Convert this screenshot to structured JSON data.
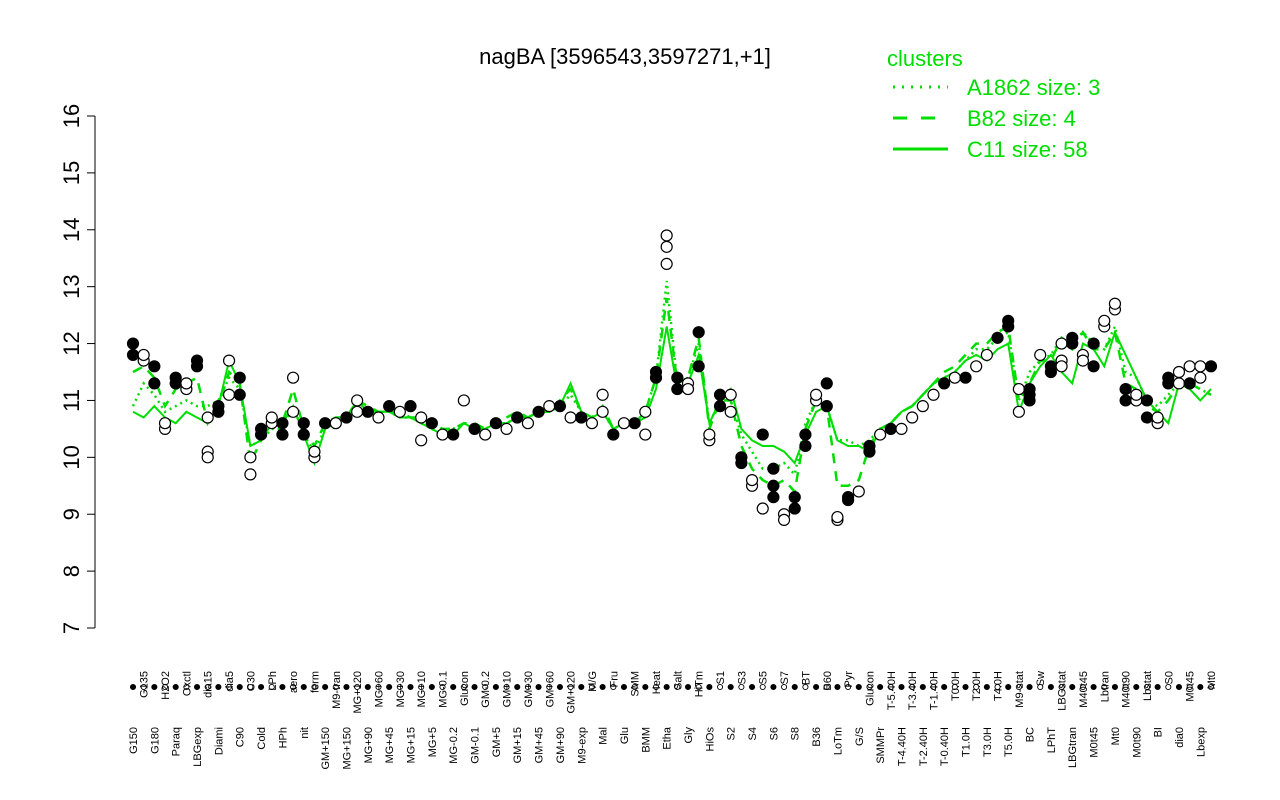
{
  "chart_data": {
    "type": "line",
    "title": "nagBA [3596543,3597271,+1]",
    "xlabel": "",
    "ylabel": "",
    "ylim": [
      7,
      16
    ],
    "yticks": [
      7,
      8,
      9,
      10,
      11,
      12,
      13,
      14,
      15,
      16
    ],
    "xtick_labels": [
      "G150",
      "G135",
      "G180",
      "H2O2",
      "Paraq",
      "Oxctl",
      "LBGexp",
      "dia15",
      "Diami",
      "dia5",
      "C90",
      "C30",
      "Cold",
      "LPh",
      "HPh",
      "aero",
      "nit",
      "ferm",
      "GM+150",
      "M9-tran",
      "MG+150",
      "MG+120",
      "MG+90",
      "MG+60",
      "MG+45",
      "MG+30",
      "MG+15",
      "MG+10",
      "MG+5",
      "MG-0.1",
      "MG-0.2",
      "Glucon",
      "GM-0.1",
      "GM-0.2",
      "GM+5",
      "GM+10",
      "GM+15",
      "GM+30",
      "GM+45",
      "GM+60",
      "GM+90",
      "GM+120",
      "M9-exp",
      "M/G",
      "Mal",
      "Fru",
      "Glu",
      "SMM",
      "BMM",
      "Heat",
      "Etha",
      "Salt",
      "Gly",
      "HiTm",
      "HiOs",
      "S1",
      "S2",
      "S3",
      "S4",
      "S5",
      "S6",
      "S7",
      "S8",
      "BT",
      "B36",
      "B60",
      "LoTm",
      "Pyr",
      "G/S",
      "Glucon",
      "SMMPr",
      "T-5.40H",
      "T-4.40H",
      "T-3.40H",
      "T-2.40H",
      "T-1.40H",
      "T-0.40H",
      "T0.0H",
      "T1.0H",
      "T2.0H",
      "T3.0H",
      "T4.0H",
      "T5.0H",
      "M9-stat",
      "BC",
      "Sw",
      "LPhT",
      "LBGstat",
      "LBGtran",
      "M40t45",
      "M0t45",
      "Lbtran",
      "Mt0",
      "M40t90",
      "M0t90",
      "Lbstat",
      "BI",
      "S0",
      "dia0",
      "M0t45",
      "Lbexp",
      "Mt0"
    ],
    "series": [
      {
        "name": "A1862 size: 3",
        "style": "dotted",
        "color": "#00dd00",
        "values": [
          10.9,
          11.3,
          11.1,
          10.8,
          10.9,
          11.0,
          10.9,
          10.9,
          11.0,
          11.4,
          11.2,
          10.2,
          10.3,
          10.5,
          10.5,
          10.9,
          10.4,
          10.1,
          10.5,
          10.6,
          10.7,
          11.0,
          10.8,
          10.8,
          10.8,
          10.7,
          10.7,
          10.6,
          10.5,
          10.4,
          10.5,
          10.6,
          10.5,
          10.5,
          10.6,
          10.6,
          10.7,
          10.7,
          10.8,
          10.8,
          10.9,
          11.1,
          10.8,
          10.7,
          10.8,
          10.5,
          10.6,
          10.6,
          10.8,
          11.4,
          13.1,
          11.3,
          11.4,
          12.0,
          10.6,
          11.0,
          11.0,
          10.4,
          10.1,
          9.8,
          9.8,
          9.9,
          9.7,
          10.6,
          11.0,
          10.9,
          10.3,
          10.3,
          10.2,
          10.3,
          10.5,
          10.6,
          10.8,
          10.9,
          11.1,
          11.3,
          11.4,
          11.5,
          11.7,
          11.9,
          11.9,
          12.1,
          12.2,
          11.0,
          11.5,
          11.7,
          11.8,
          12.1,
          12.0,
          12.2,
          12.0,
          11.9,
          12.3,
          11.5,
          11.4,
          11.0,
          10.9,
          11.1,
          11.3,
          11.3,
          11.2,
          11.1
        ]
      },
      {
        "name": "B82 size: 4",
        "style": "dashed",
        "color": "#00dd00",
        "values": [
          11.5,
          11.6,
          11.4,
          10.9,
          11.2,
          11.3,
          11.4,
          10.6,
          10.9,
          11.5,
          11.3,
          9.9,
          10.3,
          10.6,
          10.6,
          11.2,
          10.5,
          10.2,
          10.6,
          10.7,
          10.7,
          11.0,
          10.9,
          10.8,
          10.8,
          10.8,
          10.7,
          10.7,
          10.6,
          10.5,
          10.5,
          10.6,
          10.6,
          10.5,
          10.6,
          10.7,
          10.8,
          10.7,
          10.8,
          10.8,
          11.0,
          11.2,
          10.8,
          10.7,
          10.9,
          10.5,
          10.6,
          10.6,
          10.8,
          11.4,
          12.8,
          11.3,
          11.4,
          12.1,
          10.5,
          11.0,
          11.0,
          10.2,
          9.8,
          9.6,
          9.5,
          9.6,
          9.4,
          10.5,
          11.0,
          10.9,
          9.5,
          9.5,
          9.6,
          10.2,
          10.5,
          10.6,
          10.8,
          10.9,
          11.1,
          11.3,
          11.5,
          11.6,
          11.8,
          12.0,
          12.0,
          12.2,
          12.3,
          11.0,
          11.3,
          11.7,
          11.7,
          12.1,
          11.9,
          12.2,
          11.9,
          11.9,
          12.2,
          11.3,
          11.2,
          10.9,
          10.8,
          11.0,
          11.3,
          11.3,
          11.2,
          11.1
        ]
      },
      {
        "name": "C11 size: 58",
        "style": "solid",
        "color": "#00dd00",
        "values": [
          10.8,
          10.7,
          10.9,
          10.7,
          10.6,
          10.8,
          10.7,
          10.6,
          10.9,
          11.7,
          11.3,
          10.2,
          10.3,
          10.6,
          10.6,
          10.9,
          10.4,
          9.9,
          10.5,
          10.6,
          10.7,
          11.0,
          10.8,
          10.8,
          10.8,
          10.7,
          10.7,
          10.6,
          10.5,
          10.4,
          10.4,
          10.6,
          10.5,
          10.5,
          10.6,
          10.6,
          10.7,
          10.7,
          10.8,
          10.8,
          10.9,
          11.3,
          10.8,
          10.7,
          10.8,
          10.5,
          10.6,
          10.6,
          10.7,
          11.2,
          12.3,
          11.2,
          11.3,
          11.8,
          10.6,
          11.0,
          11.2,
          10.5,
          10.3,
          10.2,
          10.2,
          10.1,
          9.9,
          10.4,
          10.8,
          10.9,
          10.3,
          10.2,
          10.2,
          10.1,
          10.5,
          10.6,
          10.8,
          10.9,
          11.1,
          11.3,
          11.4,
          11.5,
          11.7,
          11.8,
          11.7,
          11.9,
          12.0,
          10.8,
          11.3,
          11.6,
          11.8,
          11.5,
          11.3,
          12.0,
          11.9,
          11.6,
          12.2,
          11.8,
          11.4,
          11.0,
          10.8,
          10.6,
          11.3,
          11.2,
          11.0,
          11.2
        ]
      }
    ],
    "points": [
      {
        "x": 0,
        "y": 11.8,
        "filled": true
      },
      {
        "x": 0,
        "y": 12.0,
        "filled": true
      },
      {
        "x": 1,
        "y": 11.7,
        "filled": false
      },
      {
        "x": 1,
        "y": 11.8,
        "filled": false
      },
      {
        "x": 2,
        "y": 11.3,
        "filled": true
      },
      {
        "x": 2,
        "y": 11.6,
        "filled": true
      },
      {
        "x": 3,
        "y": 10.5,
        "filled": false
      },
      {
        "x": 3,
        "y": 10.6,
        "filled": false
      },
      {
        "x": 4,
        "y": 11.3,
        "filled": true
      },
      {
        "x": 4,
        "y": 11.4,
        "filled": true
      },
      {
        "x": 5,
        "y": 11.2,
        "filled": false
      },
      {
        "x": 5,
        "y": 11.3,
        "filled": false
      },
      {
        "x": 6,
        "y": 11.7,
        "filled": true
      },
      {
        "x": 6,
        "y": 11.6,
        "filled": true
      },
      {
        "x": 7,
        "y": 10.1,
        "filled": false
      },
      {
        "x": 7,
        "y": 10.0,
        "filled": false
      },
      {
        "x": 7,
        "y": 10.7,
        "filled": false
      },
      {
        "x": 8,
        "y": 10.8,
        "filled": true
      },
      {
        "x": 8,
        "y": 10.9,
        "filled": true
      },
      {
        "x": 9,
        "y": 11.7,
        "filled": false
      },
      {
        "x": 9,
        "y": 11.1,
        "filled": false
      },
      {
        "x": 10,
        "y": 11.4,
        "filled": true
      },
      {
        "x": 10,
        "y": 11.1,
        "filled": true
      },
      {
        "x": 11,
        "y": 9.7,
        "filled": false
      },
      {
        "x": 11,
        "y": 10.0,
        "filled": false
      },
      {
        "x": 12,
        "y": 10.4,
        "filled": true
      },
      {
        "x": 12,
        "y": 10.5,
        "filled": true
      },
      {
        "x": 13,
        "y": 10.6,
        "filled": false
      },
      {
        "x": 13,
        "y": 10.7,
        "filled": false
      },
      {
        "x": 14,
        "y": 10.4,
        "filled": true
      },
      {
        "x": 14,
        "y": 10.6,
        "filled": true
      },
      {
        "x": 15,
        "y": 11.4,
        "filled": false
      },
      {
        "x": 15,
        "y": 10.8,
        "filled": false
      },
      {
        "x": 16,
        "y": 10.6,
        "filled": true
      },
      {
        "x": 16,
        "y": 10.4,
        "filled": true
      },
      {
        "x": 17,
        "y": 10.0,
        "filled": false
      },
      {
        "x": 17,
        "y": 10.1,
        "filled": false
      },
      {
        "x": 18,
        "y": 10.6,
        "filled": true
      },
      {
        "x": 19,
        "y": 10.6,
        "filled": false
      },
      {
        "x": 20,
        "y": 10.7,
        "filled": true
      },
      {
        "x": 21,
        "y": 11.0,
        "filled": false
      },
      {
        "x": 21,
        "y": 10.8,
        "filled": false
      },
      {
        "x": 22,
        "y": 10.8,
        "filled": true
      },
      {
        "x": 23,
        "y": 10.7,
        "filled": false
      },
      {
        "x": 24,
        "y": 10.9,
        "filled": true
      },
      {
        "x": 25,
        "y": 10.8,
        "filled": false
      },
      {
        "x": 26,
        "y": 10.9,
        "filled": true
      },
      {
        "x": 27,
        "y": 10.3,
        "filled": false
      },
      {
        "x": 27,
        "y": 10.7,
        "filled": false
      },
      {
        "x": 28,
        "y": 10.6,
        "filled": true
      },
      {
        "x": 29,
        "y": 10.4,
        "filled": false
      },
      {
        "x": 30,
        "y": 10.4,
        "filled": true
      },
      {
        "x": 31,
        "y": 11.0,
        "filled": false
      },
      {
        "x": 32,
        "y": 10.5,
        "filled": true
      },
      {
        "x": 33,
        "y": 10.4,
        "filled": false
      },
      {
        "x": 34,
        "y": 10.6,
        "filled": true
      },
      {
        "x": 35,
        "y": 10.5,
        "filled": false
      },
      {
        "x": 36,
        "y": 10.7,
        "filled": true
      },
      {
        "x": 37,
        "y": 10.6,
        "filled": false
      },
      {
        "x": 38,
        "y": 10.8,
        "filled": true
      },
      {
        "x": 39,
        "y": 10.9,
        "filled": false
      },
      {
        "x": 40,
        "y": 10.9,
        "filled": true
      },
      {
        "x": 41,
        "y": 10.7,
        "filled": false
      },
      {
        "x": 42,
        "y": 10.7,
        "filled": true
      },
      {
        "x": 43,
        "y": 10.6,
        "filled": false
      },
      {
        "x": 44,
        "y": 11.1,
        "filled": false
      },
      {
        "x": 44,
        "y": 10.8,
        "filled": false
      },
      {
        "x": 45,
        "y": 10.4,
        "filled": true
      },
      {
        "x": 46,
        "y": 10.6,
        "filled": false
      },
      {
        "x": 47,
        "y": 10.6,
        "filled": true
      },
      {
        "x": 48,
        "y": 10.8,
        "filled": false
      },
      {
        "x": 48,
        "y": 10.4,
        "filled": false
      },
      {
        "x": 49,
        "y": 11.4,
        "filled": true
      },
      {
        "x": 49,
        "y": 11.5,
        "filled": true
      },
      {
        "x": 50,
        "y": 13.4,
        "filled": false
      },
      {
        "x": 50,
        "y": 13.7,
        "filled": false
      },
      {
        "x": 50,
        "y": 13.9,
        "filled": false
      },
      {
        "x": 51,
        "y": 11.4,
        "filled": true
      },
      {
        "x": 51,
        "y": 11.2,
        "filled": true
      },
      {
        "x": 52,
        "y": 11.3,
        "filled": false
      },
      {
        "x": 52,
        "y": 11.2,
        "filled": false
      },
      {
        "x": 53,
        "y": 12.2,
        "filled": true
      },
      {
        "x": 53,
        "y": 11.6,
        "filled": true
      },
      {
        "x": 54,
        "y": 10.3,
        "filled": false
      },
      {
        "x": 54,
        "y": 10.4,
        "filled": false
      },
      {
        "x": 55,
        "y": 11.1,
        "filled": true
      },
      {
        "x": 55,
        "y": 10.9,
        "filled": true
      },
      {
        "x": 56,
        "y": 10.8,
        "filled": false
      },
      {
        "x": 56,
        "y": 11.1,
        "filled": false
      },
      {
        "x": 57,
        "y": 10.0,
        "filled": true
      },
      {
        "x": 57,
        "y": 9.9,
        "filled": true
      },
      {
        "x": 58,
        "y": 9.5,
        "filled": false
      },
      {
        "x": 58,
        "y": 9.6,
        "filled": false
      },
      {
        "x": 59,
        "y": 10.4,
        "filled": true
      },
      {
        "x": 59,
        "y": 9.1,
        "filled": false
      },
      {
        "x": 60,
        "y": 9.3,
        "filled": true
      },
      {
        "x": 60,
        "y": 9.5,
        "filled": true
      },
      {
        "x": 60,
        "y": 9.8,
        "filled": true
      },
      {
        "x": 61,
        "y": 9.0,
        "filled": false
      },
      {
        "x": 61,
        "y": 8.9,
        "filled": false
      },
      {
        "x": 62,
        "y": 9.1,
        "filled": true
      },
      {
        "x": 62,
        "y": 9.3,
        "filled": true
      },
      {
        "x": 63,
        "y": 10.4,
        "filled": true
      },
      {
        "x": 63,
        "y": 10.2,
        "filled": true
      },
      {
        "x": 64,
        "y": 11.0,
        "filled": false
      },
      {
        "x": 64,
        "y": 11.1,
        "filled": false
      },
      {
        "x": 65,
        "y": 11.3,
        "filled": true
      },
      {
        "x": 65,
        "y": 10.9,
        "filled": true
      },
      {
        "x": 66,
        "y": 8.9,
        "filled": false
      },
      {
        "x": 66,
        "y": 8.95,
        "filled": false
      },
      {
        "x": 67,
        "y": 9.3,
        "filled": true
      },
      {
        "x": 67,
        "y": 9.25,
        "filled": true
      },
      {
        "x": 68,
        "y": 9.4,
        "filled": false
      },
      {
        "x": 69,
        "y": 10.1,
        "filled": true
      },
      {
        "x": 69,
        "y": 10.2,
        "filled": true
      },
      {
        "x": 70,
        "y": 10.4,
        "filled": false
      },
      {
        "x": 71,
        "y": 10.5,
        "filled": true
      },
      {
        "x": 72,
        "y": 10.5,
        "filled": false
      },
      {
        "x": 73,
        "y": 10.7,
        "filled": false
      },
      {
        "x": 74,
        "y": 10.9,
        "filled": false
      },
      {
        "x": 75,
        "y": 11.1,
        "filled": false
      },
      {
        "x": 76,
        "y": 11.3,
        "filled": true
      },
      {
        "x": 77,
        "y": 11.4,
        "filled": false
      },
      {
        "x": 78,
        "y": 11.4,
        "filled": true
      },
      {
        "x": 79,
        "y": 11.6,
        "filled": false
      },
      {
        "x": 80,
        "y": 11.8,
        "filled": false
      },
      {
        "x": 81,
        "y": 12.1,
        "filled": true
      },
      {
        "x": 82,
        "y": 12.4,
        "filled": true
      },
      {
        "x": 82,
        "y": 12.3,
        "filled": true
      },
      {
        "x": 83,
        "y": 10.8,
        "filled": false
      },
      {
        "x": 83,
        "y": 11.2,
        "filled": false
      },
      {
        "x": 84,
        "y": 11.1,
        "filled": true
      },
      {
        "x": 84,
        "y": 11.0,
        "filled": true
      },
      {
        "x": 84,
        "y": 11.2,
        "filled": true
      },
      {
        "x": 85,
        "y": 11.8,
        "filled": false
      },
      {
        "x": 86,
        "y": 11.6,
        "filled": true
      },
      {
        "x": 86,
        "y": 11.5,
        "filled": true
      },
      {
        "x": 87,
        "y": 12.0,
        "filled": false
      },
      {
        "x": 87,
        "y": 11.7,
        "filled": false
      },
      {
        "x": 87,
        "y": 11.6,
        "filled": false
      },
      {
        "x": 88,
        "y": 12.1,
        "filled": true
      },
      {
        "x": 88,
        "y": 12.0,
        "filled": true
      },
      {
        "x": 89,
        "y": 11.8,
        "filled": false
      },
      {
        "x": 89,
        "y": 11.7,
        "filled": false
      },
      {
        "x": 90,
        "y": 11.6,
        "filled": true
      },
      {
        "x": 90,
        "y": 12.0,
        "filled": true
      },
      {
        "x": 91,
        "y": 12.3,
        "filled": false
      },
      {
        "x": 91,
        "y": 12.4,
        "filled": false
      },
      {
        "x": 92,
        "y": 12.6,
        "filled": false
      },
      {
        "x": 92,
        "y": 12.7,
        "filled": false
      },
      {
        "x": 93,
        "y": 11.0,
        "filled": true
      },
      {
        "x": 93,
        "y": 11.2,
        "filled": true
      },
      {
        "x": 94,
        "y": 11.0,
        "filled": false
      },
      {
        "x": 94,
        "y": 11.1,
        "filled": false
      },
      {
        "x": 95,
        "y": 11.0,
        "filled": true
      },
      {
        "x": 95,
        "y": 10.7,
        "filled": true
      },
      {
        "x": 96,
        "y": 10.6,
        "filled": false
      },
      {
        "x": 96,
        "y": 10.7,
        "filled": false
      },
      {
        "x": 97,
        "y": 11.3,
        "filled": true
      },
      {
        "x": 97,
        "y": 11.4,
        "filled": true
      },
      {
        "x": 98,
        "y": 11.5,
        "filled": false
      },
      {
        "x": 98,
        "y": 11.3,
        "filled": false
      },
      {
        "x": 99,
        "y": 11.3,
        "filled": true
      },
      {
        "x": 99,
        "y": 11.6,
        "filled": false
      },
      {
        "x": 100,
        "y": 11.6,
        "filled": false
      },
      {
        "x": 100,
        "y": 11.4,
        "filled": false
      },
      {
        "x": 101,
        "y": 11.6,
        "filled": true
      }
    ],
    "legend": {
      "title": "clusters",
      "placement": "top-right",
      "color": "#00dd00"
    },
    "grid": false
  }
}
